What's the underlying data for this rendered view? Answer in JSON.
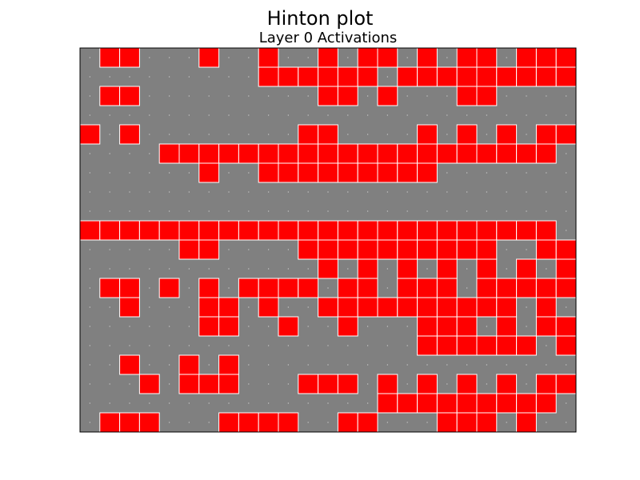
{
  "figure": {
    "title": "Hinton plot",
    "subtitle": "Layer 0 Activations"
  },
  "chart_data": {
    "type": "heatmap",
    "style": "hinton",
    "title": "Hinton plot",
    "subtitle": "Layer 0 Activations",
    "xlabel": "",
    "ylabel": "",
    "axes_visible": false,
    "n_rows": 20,
    "n_cols": 25,
    "colors": {
      "background": "#808080",
      "active": "#ff0000",
      "edge": "#ffffff",
      "inactive_marker": "#c8c8c8"
    },
    "value_encoding": "1 = active unit (red square), 0 = inactive unit (small dot)",
    "matrix": [
      [
        0,
        1,
        1,
        0,
        0,
        0,
        1,
        0,
        0,
        1,
        0,
        0,
        1,
        0,
        1,
        1,
        0,
        1,
        0,
        1,
        1,
        0,
        1,
        1,
        1
      ],
      [
        0,
        0,
        0,
        0,
        0,
        0,
        0,
        0,
        0,
        1,
        1,
        1,
        1,
        1,
        1,
        0,
        1,
        1,
        1,
        1,
        1,
        1,
        1,
        1,
        1
      ],
      [
        0,
        1,
        1,
        0,
        0,
        0,
        0,
        0,
        0,
        0,
        0,
        0,
        1,
        1,
        0,
        1,
        0,
        0,
        0,
        1,
        1,
        0,
        0,
        0,
        0
      ],
      [
        0,
        0,
        0,
        0,
        0,
        0,
        0,
        0,
        0,
        0,
        0,
        0,
        0,
        0,
        0,
        0,
        0,
        0,
        0,
        0,
        0,
        0,
        0,
        0,
        0
      ],
      [
        1,
        0,
        1,
        0,
        0,
        0,
        0,
        0,
        0,
        0,
        0,
        1,
        1,
        0,
        0,
        0,
        0,
        1,
        0,
        1,
        0,
        1,
        0,
        1,
        1
      ],
      [
        0,
        0,
        0,
        0,
        1,
        1,
        1,
        1,
        1,
        1,
        1,
        1,
        1,
        1,
        1,
        1,
        1,
        1,
        1,
        1,
        1,
        1,
        1,
        1,
        0
      ],
      [
        0,
        0,
        0,
        0,
        0,
        0,
        1,
        0,
        0,
        1,
        1,
        1,
        1,
        1,
        1,
        1,
        1,
        1,
        0,
        0,
        0,
        0,
        0,
        0,
        0
      ],
      [
        0,
        0,
        0,
        0,
        0,
        0,
        0,
        0,
        0,
        0,
        0,
        0,
        0,
        0,
        0,
        0,
        0,
        0,
        0,
        0,
        0,
        0,
        0,
        0,
        0
      ],
      [
        0,
        0,
        0,
        0,
        0,
        0,
        0,
        0,
        0,
        0,
        0,
        0,
        0,
        0,
        0,
        0,
        0,
        0,
        0,
        0,
        0,
        0,
        0,
        0,
        0
      ],
      [
        1,
        1,
        1,
        1,
        1,
        1,
        1,
        1,
        1,
        1,
        1,
        1,
        1,
        1,
        1,
        1,
        1,
        1,
        1,
        1,
        1,
        1,
        1,
        1,
        0
      ],
      [
        0,
        0,
        0,
        0,
        0,
        1,
        1,
        0,
        0,
        0,
        0,
        1,
        1,
        1,
        1,
        1,
        1,
        1,
        1,
        1,
        1,
        0,
        0,
        1,
        1
      ],
      [
        0,
        0,
        0,
        0,
        0,
        0,
        0,
        0,
        0,
        0,
        0,
        0,
        1,
        0,
        1,
        0,
        1,
        0,
        1,
        0,
        1,
        0,
        1,
        0,
        1
      ],
      [
        0,
        1,
        1,
        0,
        1,
        0,
        1,
        0,
        1,
        1,
        1,
        1,
        0,
        1,
        1,
        0,
        1,
        1,
        1,
        0,
        1,
        1,
        1,
        1,
        1
      ],
      [
        0,
        0,
        1,
        0,
        0,
        0,
        1,
        1,
        0,
        1,
        0,
        0,
        1,
        1,
        1,
        1,
        1,
        1,
        1,
        1,
        1,
        1,
        0,
        1,
        0
      ],
      [
        0,
        0,
        0,
        0,
        0,
        0,
        1,
        1,
        0,
        0,
        1,
        0,
        0,
        1,
        0,
        0,
        0,
        1,
        1,
        1,
        0,
        1,
        0,
        1,
        1
      ],
      [
        0,
        0,
        0,
        0,
        0,
        0,
        0,
        0,
        0,
        0,
        0,
        0,
        0,
        0,
        0,
        0,
        0,
        1,
        1,
        1,
        1,
        1,
        1,
        0,
        1
      ],
      [
        0,
        0,
        1,
        0,
        0,
        1,
        0,
        1,
        0,
        0,
        0,
        0,
        0,
        0,
        0,
        0,
        0,
        0,
        0,
        0,
        0,
        0,
        0,
        0,
        0
      ],
      [
        0,
        0,
        0,
        1,
        0,
        1,
        1,
        1,
        0,
        0,
        0,
        1,
        1,
        1,
        0,
        1,
        0,
        1,
        0,
        1,
        0,
        1,
        0,
        1,
        1
      ],
      [
        0,
        0,
        0,
        0,
        0,
        0,
        0,
        0,
        0,
        0,
        0,
        0,
        0,
        0,
        0,
        1,
        1,
        1,
        1,
        1,
        1,
        1,
        1,
        1,
        0
      ],
      [
        0,
        1,
        1,
        1,
        0,
        0,
        0,
        1,
        1,
        1,
        1,
        0,
        0,
        1,
        1,
        0,
        0,
        0,
        1,
        1,
        1,
        0,
        1,
        0,
        0
      ]
    ]
  }
}
